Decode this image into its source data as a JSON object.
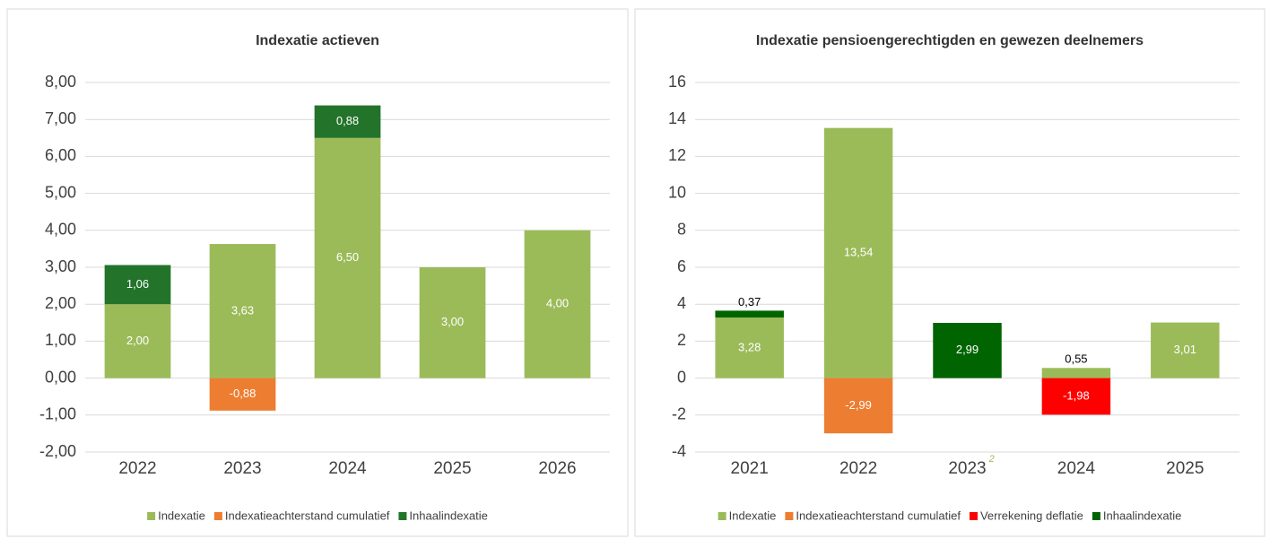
{
  "chart_data": [
    {
      "type": "bar",
      "stacked": true,
      "title": "Indexatie actieven",
      "categories": [
        "2022",
        "2023",
        "2024",
        "2025",
        "2026"
      ],
      "ylim": [
        -2,
        8
      ],
      "yticks": [
        {
          "value": -2,
          "label": "-2,00"
        },
        {
          "value": -1,
          "label": "-1,00"
        },
        {
          "value": 0,
          "label": "0,00"
        },
        {
          "value": 1,
          "label": "1,00"
        },
        {
          "value": 2,
          "label": "2,00"
        },
        {
          "value": 3,
          "label": "3,00"
        },
        {
          "value": 4,
          "label": "4,00"
        },
        {
          "value": 5,
          "label": "5,00"
        },
        {
          "value": 6,
          "label": "6,00"
        },
        {
          "value": 7,
          "label": "7,00"
        },
        {
          "value": 8,
          "label": "8,00"
        }
      ],
      "grid": true,
      "legend": "bottom",
      "series": [
        {
          "name": "Indexatie",
          "color": "#9bbb59",
          "values": [
            2,
            3.63,
            6.5,
            3,
            4
          ],
          "value_labels": [
            "2,00",
            "3,63",
            "6,50",
            "3,00",
            "4,00"
          ]
        },
        {
          "name": "Indexatieachterstand cumulatief",
          "color": "#ed7d31",
          "values": [
            null,
            -0.88,
            null,
            null,
            null
          ],
          "value_labels": [
            null,
            "-0,88",
            null,
            null,
            null
          ]
        },
        {
          "name": "Inhaalindexatie",
          "color": "#23742a",
          "values": [
            1.06,
            null,
            0.88,
            null,
            null
          ],
          "value_labels": [
            "1,06",
            null,
            "0,88",
            null,
            null
          ]
        }
      ]
    },
    {
      "type": "bar",
      "stacked": true,
      "title": "Indexatie pensioengerechtigden en gewezen deelnemers",
      "categories": [
        "2021",
        "2022",
        "2023",
        "2024",
        "2025"
      ],
      "category_marks": [
        null,
        null,
        "2",
        null,
        null
      ],
      "ylim": [
        -4,
        16
      ],
      "yticks": [
        -4,
        -2,
        0,
        2,
        4,
        6,
        8,
        10,
        12,
        14,
        16
      ],
      "grid": true,
      "legend": "bottom",
      "series": [
        {
          "name": "Indexatie",
          "color": "#9bbb59",
          "values": [
            3.28,
            13.54,
            null,
            0.55,
            3.01
          ],
          "value_labels": [
            "3,28",
            "13,54",
            null,
            "0,55",
            "3,01"
          ]
        },
        {
          "name": "Indexatieachterstand cumulatief",
          "color": "#ed7d31",
          "values": [
            null,
            -2.99,
            null,
            null,
            null
          ],
          "value_labels": [
            null,
            "-2,99",
            null,
            null,
            null
          ]
        },
        {
          "name": "Verrekening deflatie",
          "color": "#ff0000",
          "values": [
            null,
            null,
            null,
            -1.98,
            null
          ],
          "value_labels": [
            null,
            null,
            null,
            "-1,98",
            null
          ]
        },
        {
          "name": "Inhaalindexatie",
          "color": "#006400",
          "values": [
            0.37,
            null,
            2.99,
            null,
            null
          ],
          "value_labels": [
            "0,37",
            null,
            "2,99",
            null,
            null
          ]
        }
      ]
    }
  ]
}
